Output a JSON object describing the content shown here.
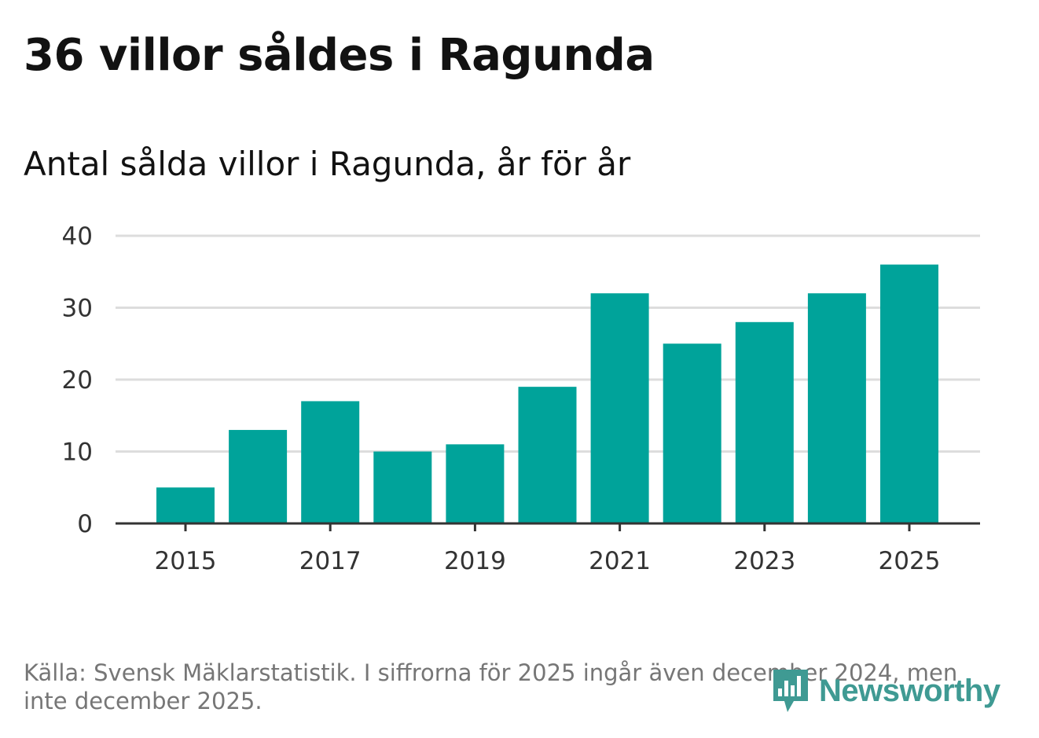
{
  "title": "36 villor såldes i Ragunda",
  "subtitle": "Antal sålda villor i Ragunda, år för år",
  "source": "Källa: Svensk Mäklarstatistik. I siffrorna för 2025 ingår även december 2024, men inte december 2025.",
  "logo": {
    "text": "Newsworthy",
    "color": "#3f9a93"
  },
  "colors": {
    "bar": "#00a39a",
    "grid": "#dddddd",
    "axis": "#333333"
  },
  "chart_data": {
    "type": "bar",
    "title": "36 villor såldes i Ragunda",
    "subtitle": "Antal sålda villor i Ragunda, år för år",
    "xlabel": "",
    "ylabel": "",
    "categories": [
      "2015",
      "2016",
      "2017",
      "2018",
      "2019",
      "2020",
      "2021",
      "2022",
      "2023",
      "2024",
      "2025"
    ],
    "values": [
      5,
      13,
      17,
      10,
      11,
      19,
      32,
      25,
      28,
      32,
      36
    ],
    "ylim": [
      0,
      40
    ],
    "yticks": [
      0,
      10,
      20,
      30,
      40
    ],
    "xtick_labels": [
      "2015",
      "2017",
      "2019",
      "2021",
      "2023",
      "2025"
    ],
    "grid": true
  }
}
